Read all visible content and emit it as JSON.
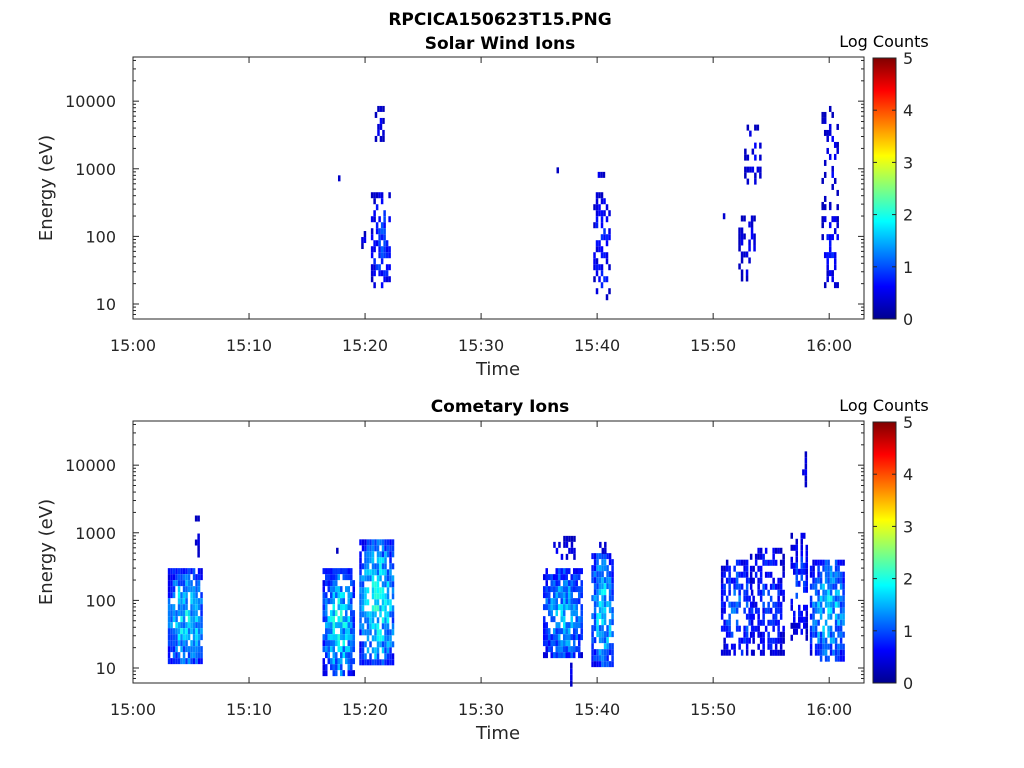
{
  "figure": {
    "title": "RPCICA150623T15.PNG"
  },
  "chart_data": [
    {
      "type": "heatmap",
      "title": "Solar Wind Ions",
      "xlabel": "Time",
      "ylabel": "Energy (eV)",
      "xlim": [
        "15:00",
        "16:03"
      ],
      "ylim": [
        6,
        45000
      ],
      "yscale": "log",
      "xtick_labels": [
        "15:00",
        "15:10",
        "15:20",
        "15:30",
        "15:40",
        "15:50",
        "16:00"
      ],
      "ytick_labels": [
        "10",
        "100",
        "1000",
        "10000"
      ],
      "colorbar": {
        "title": "Log Counts",
        "range": [
          0,
          5
        ],
        "tick_labels": [
          "0",
          "1",
          "2",
          "3",
          "4",
          "5"
        ]
      },
      "grid": false,
      "clusters": [
        {
          "t0": "15:17:40",
          "t1": "15:17:50",
          "emin": 800,
          "emax": 800,
          "level": 0.5,
          "density": 1.0
        },
        {
          "t0": "15:19:40",
          "t1": "15:20:00",
          "emin": 70,
          "emax": 120,
          "level": 0.5,
          "density": 0.7
        },
        {
          "t0": "15:20:30",
          "t1": "15:22:10",
          "emin": 18,
          "emax": 450,
          "level": 0.8,
          "density": 0.55
        },
        {
          "t0": "15:20:50",
          "t1": "15:21:30",
          "emin": 2800,
          "emax": 8500,
          "level": 0.5,
          "density": 0.35
        },
        {
          "t0": "15:36:30",
          "t1": "15:36:40",
          "emin": 1050,
          "emax": 1050,
          "level": 0.5,
          "density": 1.0
        },
        {
          "t0": "15:39:40",
          "t1": "15:41:00",
          "emin": 12,
          "emax": 450,
          "level": 0.7,
          "density": 0.4
        },
        {
          "t0": "15:39:50",
          "t1": "15:40:30",
          "emin": 800,
          "emax": 900,
          "level": 0.5,
          "density": 0.6
        },
        {
          "t0": "15:50:50",
          "t1": "15:51:00",
          "emin": 220,
          "emax": 220,
          "level": 0.5,
          "density": 1.0
        },
        {
          "t0": "15:52:10",
          "t1": "15:53:40",
          "emin": 25,
          "emax": 250,
          "level": 0.5,
          "density": 0.3
        },
        {
          "t0": "15:52:40",
          "t1": "15:54:10",
          "emin": 600,
          "emax": 4500,
          "level": 0.5,
          "density": 0.3
        },
        {
          "t0": "15:59:20",
          "t1": "16:00:50",
          "emin": 18,
          "emax": 300,
          "level": 0.6,
          "density": 0.4
        },
        {
          "t0": "15:59:20",
          "t1": "16:00:40",
          "emin": 300,
          "emax": 8500,
          "level": 0.5,
          "density": 0.25
        }
      ]
    },
    {
      "type": "heatmap",
      "title": "Cometary Ions",
      "xlabel": "Time",
      "ylabel": "Energy (eV)",
      "xlim": [
        "15:00",
        "16:03"
      ],
      "ylim": [
        6,
        45000
      ],
      "yscale": "log",
      "xtick_labels": [
        "15:00",
        "15:10",
        "15:20",
        "15:30",
        "15:40",
        "15:50",
        "16:00"
      ],
      "ytick_labels": [
        "10",
        "100",
        "1000",
        "10000"
      ],
      "colorbar": {
        "title": "Log Counts",
        "range": [
          0,
          5
        ],
        "tick_labels": [
          "0",
          "1",
          "2",
          "3",
          "4",
          "5"
        ]
      },
      "grid": false,
      "clusters": [
        {
          "t0": "15:03:00",
          "t1": "15:06:00",
          "emin": 12,
          "emax": 300,
          "level": 1.5,
          "density": 0.85
        },
        {
          "t0": "15:05:20",
          "t1": "15:05:40",
          "emin": 500,
          "emax": 1800,
          "level": 0.5,
          "density": 0.45
        },
        {
          "t0": "15:16:20",
          "t1": "15:19:00",
          "emin": 8,
          "emax": 300,
          "level": 1.5,
          "density": 0.8
        },
        {
          "t0": "15:17:30",
          "t1": "15:18:00",
          "emin": 400,
          "emax": 600,
          "level": 0.5,
          "density": 0.4
        },
        {
          "t0": "15:19:30",
          "t1": "15:22:30",
          "emin": 12,
          "emax": 800,
          "level": 1.6,
          "density": 0.8
        },
        {
          "t0": "15:35:20",
          "t1": "15:38:40",
          "emin": 15,
          "emax": 300,
          "level": 1.3,
          "density": 0.75
        },
        {
          "t0": "15:36:00",
          "t1": "15:38:00",
          "emin": 400,
          "emax": 900,
          "level": 0.5,
          "density": 0.3
        },
        {
          "t0": "15:37:40",
          "t1": "15:37:50",
          "emin": 6,
          "emax": 12,
          "level": 0.5,
          "density": 1.0
        },
        {
          "t0": "15:39:30",
          "t1": "15:41:20",
          "emin": 12,
          "emax": 500,
          "level": 1.5,
          "density": 0.8
        },
        {
          "t0": "15:40:10",
          "t1": "15:40:40",
          "emin": 500,
          "emax": 900,
          "level": 0.5,
          "density": 0.4
        },
        {
          "t0": "15:50:40",
          "t1": "15:53:20",
          "emin": 18,
          "emax": 400,
          "level": 1.0,
          "density": 0.6
        },
        {
          "t0": "15:53:10",
          "t1": "15:56:00",
          "emin": 18,
          "emax": 600,
          "level": 0.8,
          "density": 0.55
        },
        {
          "t0": "15:56:40",
          "t1": "15:58:00",
          "emin": 30,
          "emax": 1000,
          "level": 0.8,
          "density": 0.5
        },
        {
          "t0": "15:57:40",
          "t1": "15:58:00",
          "emin": 3500,
          "emax": 16000,
          "level": 0.5,
          "density": 0.3
        },
        {
          "t0": "15:58:20",
          "t1": "16:01:20",
          "emin": 15,
          "emax": 400,
          "level": 1.4,
          "density": 0.75
        }
      ]
    }
  ]
}
